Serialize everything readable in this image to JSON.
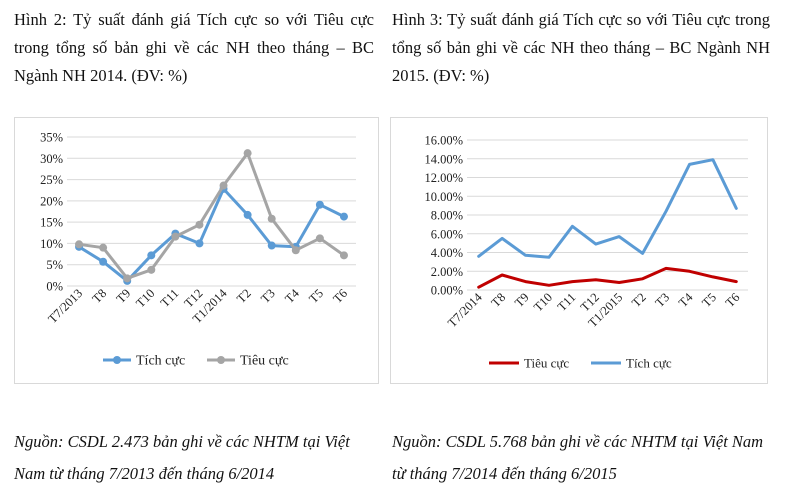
{
  "left": {
    "caption": "Hình 2: Tỷ suất đánh giá Tích cực so với Tiêu cực trong tổng số bản ghi về các NH theo tháng – BC Ngành NH 2014. (ĐV: %)",
    "source": "Nguồn: CSDL 2.473 bản ghi về các NHTM tại Việt Nam từ tháng 7/2013 đến tháng 6/2014"
  },
  "right": {
    "caption": "Hình 3: Tỷ suất đánh giá Tích cực so với Tiêu cực trong tổng số bản ghi về các NH theo tháng – BC Ngành NH 2015. (ĐV: %)",
    "source": "Nguồn: CSDL 5.768 bản ghi về các NHTM tại Việt Nam từ tháng 7/2014 đến tháng 6/2015"
  },
  "chart_data": [
    {
      "type": "line",
      "title": "Hình 2: Tỷ suất đánh giá Tích cực so với Tiêu cực trong tổng số bản ghi về các NH theo tháng – BC Ngành NH 2014. (ĐV: %)",
      "categories": [
        "T7/2013",
        "T8",
        "T9",
        "T10",
        "T11",
        "T12",
        "T1/2014",
        "T2",
        "T3",
        "T4",
        "T5",
        "T6"
      ],
      "ylim": [
        0,
        35
      ],
      "yticks": [
        "0%",
        "5%",
        "10%",
        "15%",
        "20%",
        "25%",
        "30%",
        "35%"
      ],
      "tick_values": [
        0,
        5,
        10,
        15,
        20,
        25,
        30,
        35
      ],
      "grid": true,
      "markers": true,
      "legend": "bottom",
      "series": [
        {
          "name": "Tích cực",
          "color": "#5b9bd5",
          "values": [
            9.2,
            5.7,
            1.2,
            7.2,
            12.3,
            10.0,
            22.8,
            16.7,
            9.5,
            9.2,
            19.1,
            16.3
          ]
        },
        {
          "name": "Tiêu cực",
          "color": "#a5a5a5",
          "values": [
            9.8,
            9.0,
            1.8,
            3.8,
            11.6,
            14.4,
            23.6,
            31.2,
            15.8,
            8.4,
            11.2,
            7.2
          ]
        }
      ]
    },
    {
      "type": "line",
      "title": "Hình 3: Tỷ suất đánh giá Tích cực so với Tiêu cực trong tổng số bản ghi về các NH theo tháng – BC Ngành NH 2015. (ĐV: %)",
      "categories": [
        "T7/2014",
        "T8",
        "T9",
        "T10",
        "T11",
        "T12",
        "T1/2015",
        "T2",
        "T3",
        "T4",
        "T5",
        "T6"
      ],
      "ylim": [
        0,
        16
      ],
      "yticks": [
        "0.00%",
        "2.00%",
        "4.00%",
        "6.00%",
        "8.00%",
        "10.00%",
        "12.00%",
        "14.00%",
        "16.00%"
      ],
      "tick_values": [
        0,
        2,
        4,
        6,
        8,
        10,
        12,
        14,
        16
      ],
      "grid": true,
      "markers": false,
      "legend": "bottom",
      "series": [
        {
          "name": "Tiêu cực",
          "color": "#c00000",
          "values": [
            0.3,
            1.6,
            0.9,
            0.5,
            0.9,
            1.1,
            0.8,
            1.2,
            2.3,
            2.0,
            1.4,
            0.9
          ]
        },
        {
          "name": "Tích cực",
          "color": "#5b9bd5",
          "values": [
            3.6,
            5.5,
            3.7,
            3.5,
            6.8,
            4.9,
            5.7,
            3.9,
            8.4,
            13.4,
            13.9,
            8.7
          ]
        }
      ]
    }
  ]
}
